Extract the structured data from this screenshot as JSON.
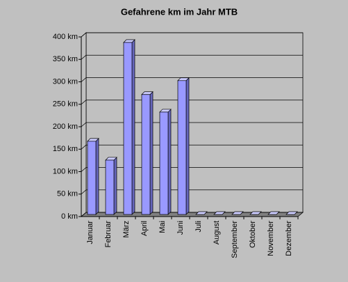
{
  "chart_data": {
    "type": "bar3d",
    "title": "Gefahrene km im Jahr MTB",
    "categories": [
      "Januar",
      "Februar",
      "März",
      "April",
      "Mai",
      "Juni",
      "Juli",
      "August",
      "September",
      "Oktober",
      "November",
      "Dezember"
    ],
    "values": [
      163,
      121,
      383,
      267,
      228,
      298,
      0,
      0,
      0,
      0,
      0,
      0
    ],
    "color": "#9999ff",
    "ylim": [
      0,
      400
    ],
    "yticks": [
      {
        "value": 0,
        "label": "0 km"
      },
      {
        "value": 50,
        "label": "50 km"
      },
      {
        "value": 100,
        "label": "100 km"
      },
      {
        "value": 150,
        "label": "150 km"
      },
      {
        "value": 200,
        "label": "200 km"
      },
      {
        "value": 250,
        "label": "250 km"
      },
      {
        "value": 300,
        "label": "300 km"
      },
      {
        "value": 350,
        "label": "350 km"
      },
      {
        "value": 400,
        "label": "400 km"
      }
    ],
    "grid": true
  }
}
